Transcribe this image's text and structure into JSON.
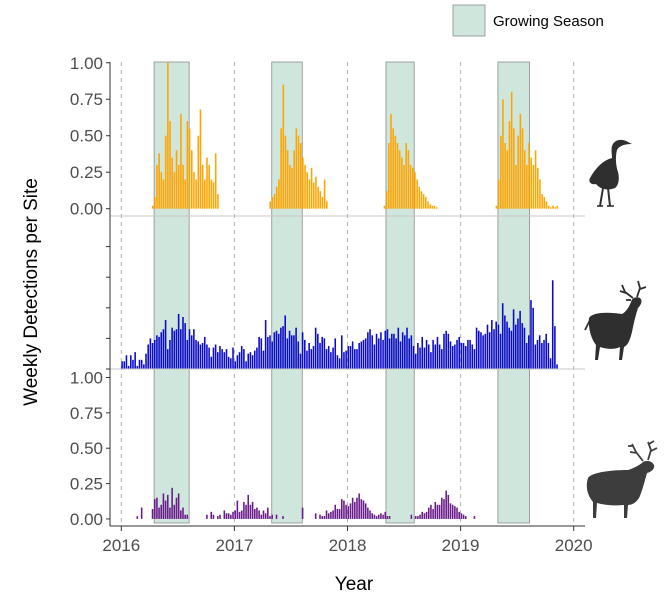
{
  "chart_data": {
    "type": "bar",
    "xlabel": "Year",
    "ylabel": "Weekly Detections per Site",
    "legend": {
      "label": "Growing Season",
      "color": "#cfe6dc",
      "placement": "top-right"
    },
    "x_range": [
      2015.9,
      2020.1
    ],
    "x_ticks": [
      2016,
      2017,
      2018,
      2019,
      2020
    ],
    "x_tick_labels": [
      "2016",
      "2017",
      "2018",
      "2019",
      "2020"
    ],
    "growing_seasons": [
      [
        2016.29,
        2016.6
      ],
      [
        2017.33,
        2017.6
      ],
      [
        2018.34,
        2018.59
      ],
      [
        2019.33,
        2019.61
      ]
    ],
    "panels": [
      {
        "name": "crane",
        "color": "#ffa500",
        "ylim": [
          -0.05,
          1.06
        ],
        "y_ticks": [
          0,
          0.25,
          0.5,
          0.75,
          1.0
        ],
        "y_tick_labels": [
          "0.00",
          "0.25",
          "0.50",
          "0.75",
          "1.00"
        ],
        "icon": "crane-icon",
        "seasons": [
          {
            "start": 2016.27,
            "values": [
              0.02,
              0.08,
              0.3,
              0.38,
              0.25,
              0.2,
              0.5,
              1.0,
              0.6,
              0.35,
              0.25,
              0.4,
              0.3,
              0.65,
              0.3,
              0.2,
              0.6,
              0.55,
              0.4,
              0.25,
              0.2,
              0.5,
              0.68,
              0.3,
              0.2,
              0.35,
              0.3,
              0.2,
              0.18,
              0.38,
              0.1
            ]
          },
          {
            "start": 2017.31,
            "values": [
              0.05,
              0.08,
              0.1,
              0.15,
              0.2,
              0.55,
              0.85,
              0.5,
              0.4,
              0.3,
              0.28,
              0.4,
              0.55,
              0.5,
              0.45,
              0.35,
              0.3,
              0.25,
              0.2,
              0.28,
              0.18,
              0.22,
              0.15,
              0.12,
              0.08,
              0.2,
              0.05
            ]
          },
          {
            "start": 2018.32,
            "values": [
              0.02,
              0.12,
              0.45,
              0.65,
              0.55,
              0.5,
              0.45,
              0.4,
              0.35,
              0.3,
              0.45,
              0.4,
              0.3,
              0.28,
              0.25,
              0.2,
              0.15,
              0.12,
              0.1,
              0.08,
              0.05,
              0.03,
              0.02,
              0.02,
              0.01
            ]
          },
          {
            "start": 2019.31,
            "values": [
              0.02,
              0.2,
              0.5,
              0.75,
              0.45,
              0.4,
              0.6,
              0.8,
              0.55,
              0.3,
              0.5,
              0.65,
              0.55,
              0.4,
              0.3,
              0.45,
              0.35,
              0.3,
              0.4,
              0.28,
              0.2,
              0.1,
              0.08,
              0.05,
              0.02,
              0.01,
              0.02,
              0.01,
              0.02
            ]
          }
        ]
      },
      {
        "name": "caribou",
        "color": "#0b0bc8",
        "ylim": [
          0,
          1.0
        ],
        "y_ticks": [
          0.0,
          0.2,
          0.4,
          0.6,
          0.8
        ],
        "y_tick_labels": [
          "",
          "",
          "",
          "",
          ""
        ],
        "icon": "deer-icon",
        "series_start": 2016.0,
        "values": [
          0.05,
          0.05,
          0.09,
          0.02,
          0.09,
          0.06,
          0.11,
          0.02,
          0.06,
          0.06,
          0.03,
          0.1,
          0.16,
          0.2,
          0.17,
          0.19,
          0.22,
          0.21,
          0.24,
          0.26,
          0.32,
          0.13,
          0.19,
          0.27,
          0.25,
          0.26,
          0.36,
          0.26,
          0.34,
          0.3,
          0.19,
          0.26,
          0.22,
          0.26,
          0.19,
          0.18,
          0.16,
          0.17,
          0.21,
          0.16,
          0.14,
          0.08,
          0.14,
          0.16,
          0.11,
          0.15,
          0.13,
          0.11,
          0.13,
          0.08,
          0.07,
          0.14,
          0.05,
          0.09,
          0.11,
          0.15,
          0.13,
          0.05,
          0.1,
          0.11,
          0.09,
          0.12,
          0.14,
          0.21,
          0.2,
          0.12,
          0.32,
          0.21,
          0.22,
          0.18,
          0.24,
          0.25,
          0.23,
          0.27,
          0.28,
          0.35,
          0.2,
          0.25,
          0.22,
          0.22,
          0.27,
          0.18,
          0.1,
          0.24,
          0.19,
          0.12,
          0.17,
          0.13,
          0.15,
          0.27,
          0.23,
          0.17,
          0.21,
          0.2,
          0.13,
          0.15,
          0.11,
          0.14,
          0.2,
          0.09,
          0.07,
          0.22,
          0.11,
          0.12,
          0.15,
          0.15,
          0.18,
          0.13,
          0.13,
          0.17,
          0.18,
          0.19,
          0.2,
          0.24,
          0.26,
          0.22,
          0.16,
          0.23,
          0.2,
          0.24,
          0.19,
          0.25,
          0.26,
          0.2,
          0.23,
          0.23,
          0.2,
          0.27,
          0.18,
          0.24,
          0.22,
          0.27,
          0.2,
          0.22,
          0.15,
          0.1,
          0.17,
          0.14,
          0.21,
          0.14,
          0.19,
          0.16,
          0.11,
          0.19,
          0.16,
          0.21,
          0.16,
          0.13,
          0.23,
          0.25,
          0.23,
          0.18,
          0.15,
          0.16,
          0.19,
          0.21,
          0.17,
          0.17,
          0.15,
          0.19,
          0.19,
          0.16,
          0.13,
          0.27,
          0.25,
          0.24,
          0.22,
          0.23,
          0.29,
          0.24,
          0.32,
          0.26,
          0.31,
          0.29,
          0.23,
          0.43,
          0.35,
          0.31,
          0.27,
          0.25,
          0.39,
          0.29,
          0.33,
          0.38,
          0.3,
          0.27,
          0.17,
          0.22,
          0.45,
          0.4,
          0.16,
          0.19,
          0.22,
          0.17,
          0.19,
          0.23,
          0.17,
          0.07,
          0.58,
          0.28,
          0.03
        ]
      },
      {
        "name": "reindeer",
        "color": "#6a1b8a",
        "ylim": [
          -0.05,
          1.06
        ],
        "y_ticks": [
          0,
          0.25,
          0.5,
          0.75,
          1.0
        ],
        "y_tick_labels": [
          "0.00",
          "0.25",
          "0.50",
          "0.75",
          "1.00"
        ],
        "icon": "reindeer-icon",
        "series_start": 2016.0,
        "values": [
          0,
          0,
          0,
          0,
          0,
          0,
          0,
          0.02,
          0,
          0.08,
          0,
          0,
          0,
          0,
          0.07,
          0.14,
          0.15,
          0.08,
          0.1,
          0.18,
          0.13,
          0.17,
          0.08,
          0.22,
          0.1,
          0.15,
          0.18,
          0.06,
          0.08,
          0.03,
          0.03,
          0,
          0,
          0,
          0,
          0,
          0,
          0,
          0,
          0.03,
          0,
          0.05,
          0.03,
          0,
          0.02,
          0.03,
          0,
          0.06,
          0.04,
          0.04,
          0.03,
          0.05,
          0.06,
          0.13,
          0.05,
          0.06,
          0.12,
          0.1,
          0.17,
          0.1,
          0.12,
          0.07,
          0.08,
          0.06,
          0.03,
          0.06,
          0.04,
          0.08,
          0.02,
          0.03,
          0,
          0.03,
          0,
          0,
          0.02,
          0,
          0,
          0,
          0,
          0,
          0,
          0,
          0,
          0.08,
          0,
          0,
          0,
          0,
          0,
          0.04,
          0,
          0.03,
          0.02,
          0.02,
          0.06,
          0.04,
          0.05,
          0.06,
          0.1,
          0.07,
          0.07,
          0.14,
          0.13,
          0.1,
          0.09,
          0.11,
          0.15,
          0.12,
          0.15,
          0.18,
          0.14,
          0.13,
          0.11,
          0.08,
          0.06,
          0.04,
          0.03,
          0.02,
          0.03,
          0.04,
          0.03,
          0.05,
          0.02,
          0.02,
          0,
          0,
          0,
          0,
          0,
          0,
          0,
          0,
          0,
          0.03,
          0,
          0.02,
          0.02,
          0.03,
          0.05,
          0.04,
          0.05,
          0.08,
          0.1,
          0.07,
          0.12,
          0.1,
          0.1,
          0.15,
          0.14,
          0.2,
          0.17,
          0.11,
          0.1,
          0.09,
          0.08,
          0.05,
          0.04,
          0.03,
          0.02,
          0,
          0,
          0,
          0.02,
          0,
          0,
          0,
          0,
          0,
          0,
          0,
          0,
          0,
          0,
          0,
          0,
          0,
          0
        ]
      }
    ]
  }
}
